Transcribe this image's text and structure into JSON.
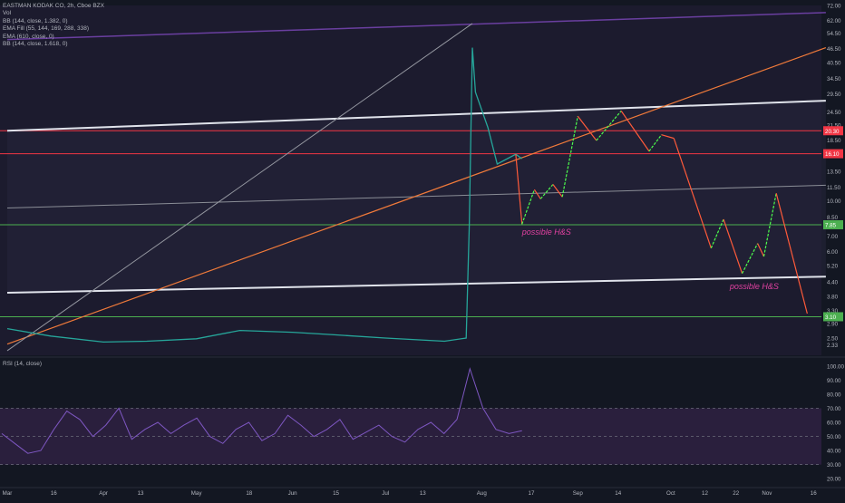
{
  "legend": {
    "title": "EASTMAN KODAK CO, 2h, Cboe BZX",
    "lines": [
      "Vol",
      "BB (144, close, 1.382, 0)",
      "EMA Fill (55, 144, 169, 288, 338)",
      "EMA (610, close, 0)",
      "BB (144, close, 1.618, 0)"
    ]
  },
  "rsi_legend": "RSI (14, close)",
  "annotations": [
    "possible H&S",
    "possible H&S"
  ],
  "colors": {
    "background": "#131722",
    "upper_pane_bg": "#1c1b2e",
    "rsi_band": "#2a1f3d",
    "white_line": "#e0e3eb",
    "orange_line": "#f07a3a",
    "purple_line": "#6a3fa0",
    "red_level": "#f23645",
    "green_level": "#4caf50",
    "projection_red": "#ff5a3a",
    "projection_green": "#4cff4c",
    "rsi_line": "#7e57c2",
    "annotation": "#e040a0"
  },
  "chart_data": [
    {
      "type": "line",
      "title": "EASTMAN KODAK CO, 2h, Cboe BZX",
      "y_scale": "log",
      "ylim": [
        2.1,
        72
      ],
      "y_ticks": [
        "72.00",
        "62.00",
        "54.50",
        "46.50",
        "40.50",
        "34.50",
        "29.50",
        "24.50",
        "21.50",
        "18.50",
        "16.30",
        "13.50",
        "11.50",
        "10.00",
        "8.50",
        "7.00",
        "6.00",
        "5.20",
        "4.40",
        "3.80",
        "3.30",
        "2.90",
        "2.50",
        "2.33"
      ],
      "x_ticks": [
        "Mar",
        "16",
        "Apr",
        "13",
        "May",
        "18",
        "Jun",
        "15",
        "Jul",
        "13",
        "Aug",
        "17",
        "Sep",
        "14",
        "Oct",
        "12",
        "22",
        "Nov",
        "16"
      ],
      "price_labels": [
        {
          "label": "20.30",
          "value": 20.3,
          "color": "#f23645"
        },
        {
          "label": "16.10",
          "value": 16.1,
          "color": "#f23645"
        },
        {
          "label": "7.85",
          "value": 7.85,
          "color": "#4caf50"
        },
        {
          "label": "3.10",
          "value": 3.1,
          "color": "#4caf50"
        }
      ],
      "price_series": [
        {
          "name": "Mar-1",
          "value": 2.75
        },
        {
          "name": "Mar-15",
          "value": 2.55
        },
        {
          "name": "Apr-1",
          "value": 2.4
        },
        {
          "name": "Apr-15",
          "value": 2.42
        },
        {
          "name": "May-1",
          "value": 2.48
        },
        {
          "name": "May-15",
          "value": 2.7
        },
        {
          "name": "Jun-1",
          "value": 2.65
        },
        {
          "name": "Jun-15",
          "value": 2.58
        },
        {
          "name": "Jul-1",
          "value": 2.5
        },
        {
          "name": "Jul-20",
          "value": 2.42
        },
        {
          "name": "Jul-27",
          "value": 2.5
        },
        {
          "name": "Jul-28",
          "value": 7.8
        },
        {
          "name": "Jul-29",
          "value": 47
        },
        {
          "name": "Jul-30",
          "value": 30
        },
        {
          "name": "Aug-3",
          "value": 21
        },
        {
          "name": "Aug-6",
          "value": 14.5
        },
        {
          "name": "Aug-12",
          "value": 16
        },
        {
          "name": "Aug-14",
          "value": 15.3
        }
      ],
      "trend_lines": [
        {
          "name": "upper white channel",
          "from": [
            "Mar-1",
            20.3
          ],
          "to": [
            "Nov-20",
            27.5
          ]
        },
        {
          "name": "middle grey line",
          "from": [
            "Mar-1",
            9.3
          ],
          "to": [
            "Nov-20",
            11.7
          ]
        },
        {
          "name": "lower white channel",
          "from": [
            "Mar-1",
            3.95
          ],
          "to": [
            "Nov-20",
            4.65
          ]
        },
        {
          "name": "orange trend",
          "from": [
            "Mar-1",
            2.35
          ],
          "to": [
            "Nov-20",
            47
          ]
        },
        {
          "name": "purple top",
          "from": [
            "Mar-1",
            51
          ],
          "to": [
            "Nov-20",
            67
          ]
        }
      ],
      "rsi": {
        "ylim": [
          15,
          105
        ],
        "y_ticks": [
          "100.00",
          "90.00",
          "80.00",
          "70.00",
          "60.00",
          "50.00",
          "40.00",
          "30.00",
          "20.00"
        ],
        "upper_band": 70,
        "lower_band": 30,
        "values": [
          52,
          45,
          38,
          40,
          55,
          68,
          62,
          50,
          58,
          70,
          48,
          55,
          60,
          52,
          58,
          63,
          50,
          45,
          55,
          60,
          47,
          52,
          65,
          58,
          50,
          55,
          62,
          48,
          53,
          58,
          50,
          46,
          55,
          60,
          52,
          62,
          98,
          70,
          55,
          52,
          54
        ]
      }
    }
  ]
}
